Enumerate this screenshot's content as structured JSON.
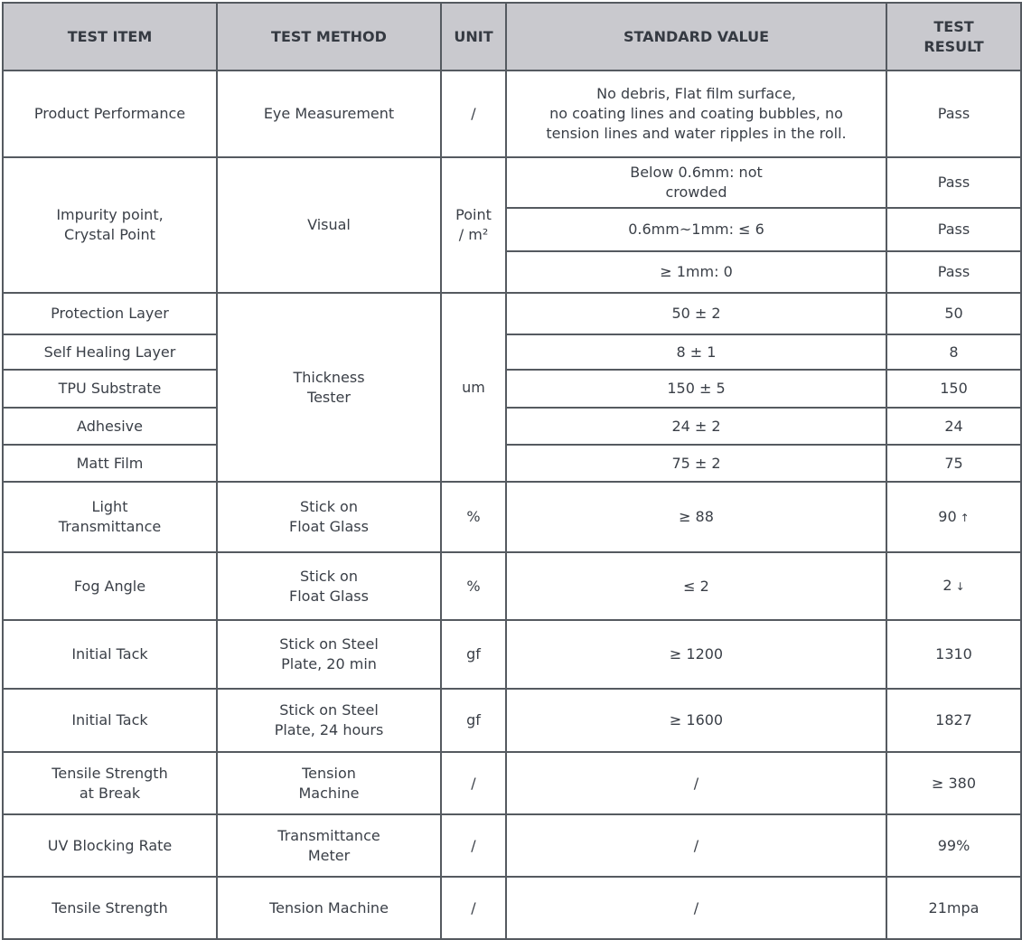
{
  "header": [
    "TEST ITEM",
    "TEST METHOD",
    "UNIT",
    "STANDARD VALUE",
    "TEST\nRESULT"
  ],
  "rows": [
    [
      "Product Performance",
      "Eye Measurement",
      "/",
      "No debris, Flat film surface,\nno coating lines and coating bubbles, no\ntension lines and water ripples in the roll.",
      "Pass"
    ],
    [
      "Impurity point,\nCrystal Point",
      "Visual",
      "Point\n/ m²",
      "Below 0.6mm: not\ncrowded",
      "Pass"
    ],
    [
      "0.6mm~1mm: ≤ 6",
      "Pass"
    ],
    [
      "≥ 1mm: 0",
      "Pass"
    ],
    [
      "Protection Layer",
      "Thickness\nTester",
      "um",
      "50 ± 2",
      "50"
    ],
    [
      "Self Healing Layer",
      "8 ± 1",
      "8"
    ],
    [
      "TPU Substrate",
      "150 ± 5",
      "150"
    ],
    [
      "Adhesive",
      "24 ± 2",
      "24"
    ],
    [
      "Matt Film",
      "75 ± 2",
      "75"
    ],
    [
      "Light\nTransmittance",
      "Stick on\nFloat Glass",
      "%",
      "≥ 88",
      "90"
    ],
    [
      "Fog Angle",
      "Stick on\nFloat Glass",
      "%",
      "≤ 2",
      "2"
    ],
    [
      "Initial Tack",
      "Stick on Steel\nPlate, 20 min",
      "gf",
      "≥ 1200",
      "1310"
    ],
    [
      "Initial Tack",
      "Stick on Steel\nPlate, 24 hours",
      "gf",
      "≥ 1600",
      "1827"
    ],
    [
      "Tensile Strength\nat Break",
      "Tension\nMachine",
      "/",
      "/",
      "≥ 380"
    ],
    [
      "UV Blocking Rate",
      "Transmittance\nMeter",
      "/",
      "/",
      "99%"
    ],
    [
      "Tensile Strength",
      "Tension Machine",
      "/",
      "/",
      "21mpa"
    ]
  ],
  "result_arrows": {
    "9": "↑",
    "10": "↓"
  },
  "colors": {
    "header_bg": "#c9c9ce",
    "border": "#555a60",
    "text": "#3a3f47"
  }
}
